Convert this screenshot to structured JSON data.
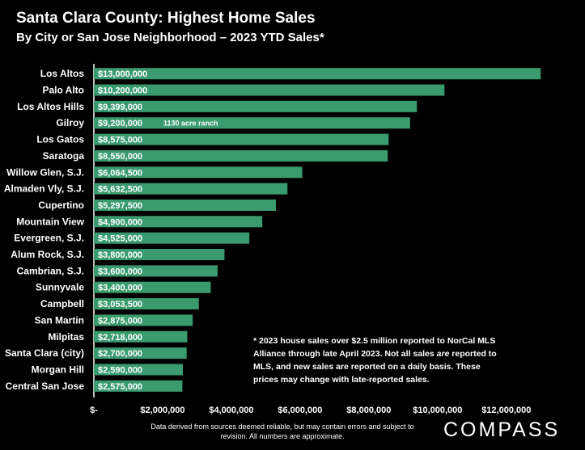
{
  "header": {
    "title": "Santa Clara County: Highest Home Sales",
    "subtitle": "By City or San Jose Neighborhood – 2023 YTD Sales*"
  },
  "note": {
    "part1": "* 2023 house sales over $2.5 million reported to NorCal MLS Alliance through late April 2023. Not all sales ",
    "emphasis": "are",
    "part2": " reported to MLS, and new sales are reported on a daily basis. These prices may change with late-reported sales."
  },
  "footer": {
    "disclaimer": "Data derived from sources deemed reliable, but may contain errors and subject to revision. All numbers are approximate.",
    "logo": "COMPASS"
  },
  "colors": {
    "background": "#000000",
    "bar": "#3a9b6f",
    "text": "#ffffff"
  },
  "chart_data": {
    "type": "bar",
    "orientation": "horizontal",
    "categories": [
      "Los Altos",
      "Palo Alto",
      "Los Altos Hills",
      "Gilroy",
      "Los Gatos",
      "Saratoga",
      "Willow Glen, S.J.",
      "Almaden Vly, S.J.",
      "Cupertino",
      "Mountain View",
      "Evergreen, S.J.",
      "Alum Rock, S.J.",
      "Cambrian, S.J.",
      "Sunnyvale",
      "Campbell",
      "San Martin",
      "Milpitas",
      "Santa Clara (city)",
      "Morgan Hill",
      "Central San Jose"
    ],
    "values": [
      13000000,
      10200000,
      9399000,
      9200000,
      8575000,
      8550000,
      6064500,
      5632500,
      5297500,
      4900000,
      4525000,
      3800000,
      3600000,
      3400000,
      3053500,
      2875000,
      2718000,
      2700000,
      2590000,
      2575000
    ],
    "data_labels": [
      "$13,000,000",
      "$10,200,000",
      "$9,399,000",
      "$9,200,000",
      "$8,575,000",
      "$8,550,000",
      "$6,064,500",
      "$5,632,500",
      "$5,297,500",
      "$4,900,000",
      "$4,525,000",
      "$3,800,000",
      "$3,600,000",
      "$3,400,000",
      "$3,053,500",
      "$2,875,000",
      "$2,718,000",
      "$2,700,000",
      "$2,590,000",
      "$2,575,000"
    ],
    "annotations": [
      {
        "category": "Gilroy",
        "text": "1130 acre ranch"
      }
    ],
    "x_ticks": [
      0,
      2000000,
      4000000,
      6000000,
      8000000,
      10000000,
      12000000
    ],
    "x_tick_labels": [
      "$-",
      "$2,000,000",
      "$4,000,000",
      "$6,000,000",
      "$8,000,000",
      "$10,000,000",
      "$12,000,000"
    ],
    "xlim": [
      0,
      13300000
    ],
    "grid": false,
    "legend": "none"
  }
}
